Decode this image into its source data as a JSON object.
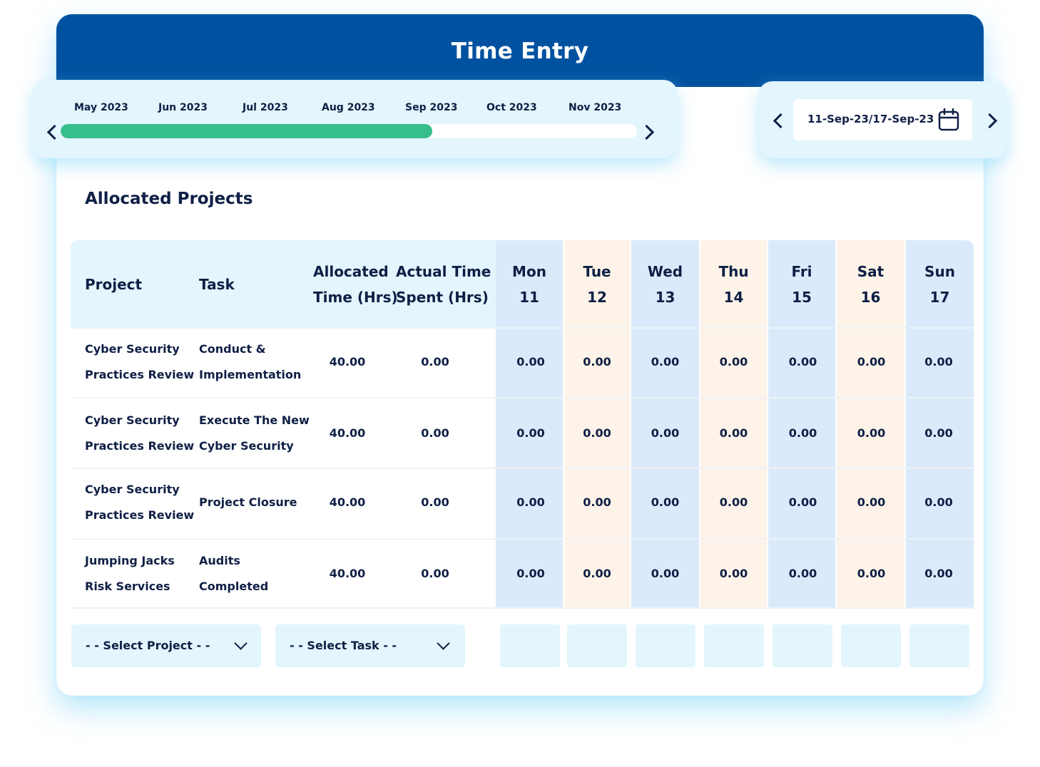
{
  "header": {
    "title": "Time Entry"
  },
  "timeline": {
    "months": [
      "May 2023",
      "Jun 2023",
      "Jul 2023",
      "Aug 2023",
      "Sep 2023",
      "Oct 2023",
      "Nov 2023"
    ],
    "progress_fraction": 0.645
  },
  "week": {
    "range": "11-Sep-23/17-Sep-23"
  },
  "section_title": "Allocated Projects",
  "table": {
    "headers": {
      "project": "Project",
      "task": "Task",
      "allocated_line1": "Allocated",
      "allocated_line2": "Time (Hrs)",
      "actual_line1": "Actual Time",
      "actual_line2": "Spent (Hrs)"
    },
    "days": [
      {
        "name": "Mon",
        "date": "11"
      },
      {
        "name": "Tue",
        "date": "12"
      },
      {
        "name": "Wed",
        "date": "13"
      },
      {
        "name": "Thu",
        "date": "14"
      },
      {
        "name": "Fri",
        "date": "15"
      },
      {
        "name": "Sat",
        "date": "16"
      },
      {
        "name": "Sun",
        "date": "17"
      }
    ],
    "rows": [
      {
        "project_l1": "Cyber Security",
        "project_l2": "Practices Review",
        "task_l1": "Conduct &",
        "task_l2": "Implementation",
        "allocated": "40.00",
        "actual": "0.00",
        "hours": [
          "0.00",
          "0.00",
          "0.00",
          "0.00",
          "0.00",
          "0.00",
          "0.00"
        ]
      },
      {
        "project_l1": "Cyber Security",
        "project_l2": "Practices Review",
        "task_l1": "Execute The New",
        "task_l2": "Cyber Security",
        "allocated": "40.00",
        "actual": "0.00",
        "hours": [
          "0.00",
          "0.00",
          "0.00",
          "0.00",
          "0.00",
          "0.00",
          "0.00"
        ]
      },
      {
        "project_l1": "Cyber Security",
        "project_l2": "Practices Review",
        "task_l1": "Project Closure",
        "task_l2": "",
        "allocated": "40.00",
        "actual": "0.00",
        "hours": [
          "0.00",
          "0.00",
          "0.00",
          "0.00",
          "0.00",
          "0.00",
          "0.00"
        ]
      },
      {
        "project_l1": "Jumping Jacks",
        "project_l2": "Risk Services",
        "task_l1": "Audits",
        "task_l2": "Completed",
        "allocated": "40.00",
        "actual": "0.00",
        "hours": [
          "0.00",
          "0.00",
          "0.00",
          "0.00",
          "0.00",
          "0.00",
          "0.00"
        ]
      }
    ]
  },
  "new_entry": {
    "project_placeholder": "- - Select Project - -",
    "task_placeholder": "- - Select Task - -"
  },
  "colors": {
    "header": "#0052a0",
    "progress": "#37be8d",
    "panel": "#e3f5fd",
    "day_blue": "#dbeafa",
    "day_peach": "#fef3e8"
  }
}
